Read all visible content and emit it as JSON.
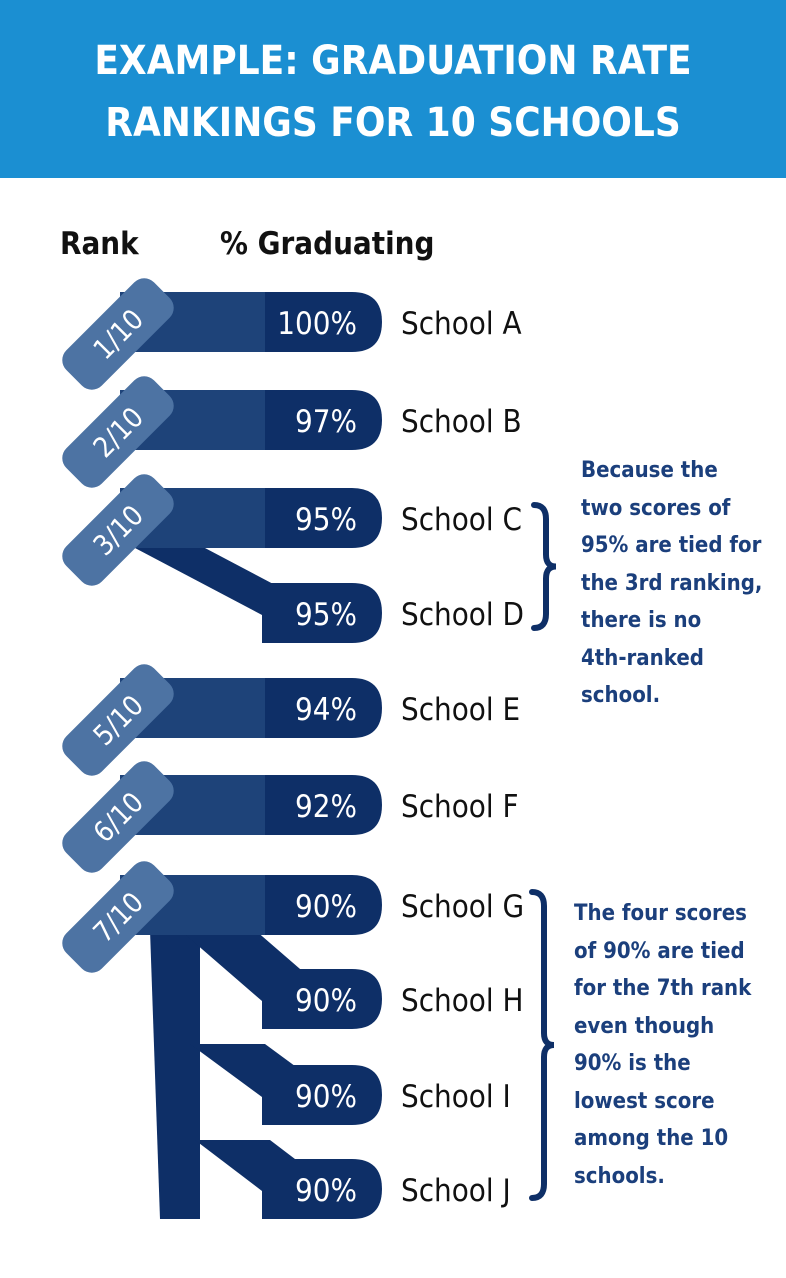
{
  "header": {
    "title_lines": [
      "EXAMPLE: GRADUATION RATE",
      "RANKINGS FOR 10 SCHOOLS"
    ],
    "background": "#1b8fd2"
  },
  "columns": {
    "rank": "Rank",
    "percent": "% Graduating"
  },
  "colors": {
    "bar": "#0e2f67",
    "bar_light": "#2c5389",
    "rank_tab": "#4d73a3",
    "note_text": "#1b3f7c"
  },
  "rows": [
    {
      "rank": "1/10",
      "percent": "100%",
      "school": "School A"
    },
    {
      "rank": "2/10",
      "percent": "97%",
      "school": "School B"
    },
    {
      "rank": "3/10",
      "percent": "95%",
      "school": "School C"
    },
    {
      "rank": "",
      "percent": "95%",
      "school": "School D"
    },
    {
      "rank": "5/10",
      "percent": "94%",
      "school": "School E"
    },
    {
      "rank": "6/10",
      "percent": "92%",
      "school": "School F"
    },
    {
      "rank": "7/10",
      "percent": "90%",
      "school": "School G"
    },
    {
      "rank": "",
      "percent": "90%",
      "school": "School H"
    },
    {
      "rank": "",
      "percent": "90%",
      "school": "School I"
    },
    {
      "rank": "",
      "percent": "90%",
      "school": "School J"
    }
  ],
  "notes": {
    "tie_third": [
      "Because the",
      "two scores of",
      "95% are tied for",
      "the 3rd ranking,",
      "there is no",
      "4th-ranked",
      "school."
    ],
    "tie_seventh": [
      "The four scores",
      "of 90% are tied",
      "for the 7th rank",
      "even though",
      "90% is the",
      "lowest score",
      "among the 10",
      "schools."
    ]
  }
}
